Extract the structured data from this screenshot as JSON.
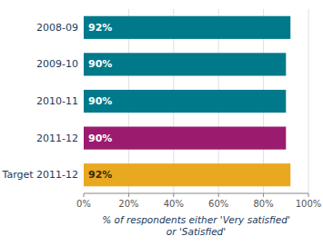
{
  "chart_data": {
    "type": "bar",
    "orientation": "horizontal",
    "categories": [
      "2008-09",
      "2009-10",
      "2010-11",
      "2011-12",
      "Target 2011-12"
    ],
    "values": [
      92,
      90,
      90,
      90,
      92
    ],
    "value_labels": [
      "92%",
      "90%",
      "90%",
      "90%",
      "92%"
    ],
    "colors": [
      "#007A8A",
      "#007A8A",
      "#007A8A",
      "#9B1C6E",
      "#E8A820"
    ],
    "xlabel": "% of respondents either 'Very satisfied'\nor 'Satisfied'",
    "xlim": [
      0,
      100
    ],
    "xticks": [
      {
        "value": 0,
        "label": "0%"
      },
      {
        "value": 20,
        "label": "20%"
      },
      {
        "value": 40,
        "label": "40%"
      },
      {
        "value": 60,
        "label": "60%"
      },
      {
        "value": 80,
        "label": "80%"
      },
      {
        "value": 100,
        "label": "100%"
      }
    ],
    "grid": true,
    "data_labels": true
  }
}
